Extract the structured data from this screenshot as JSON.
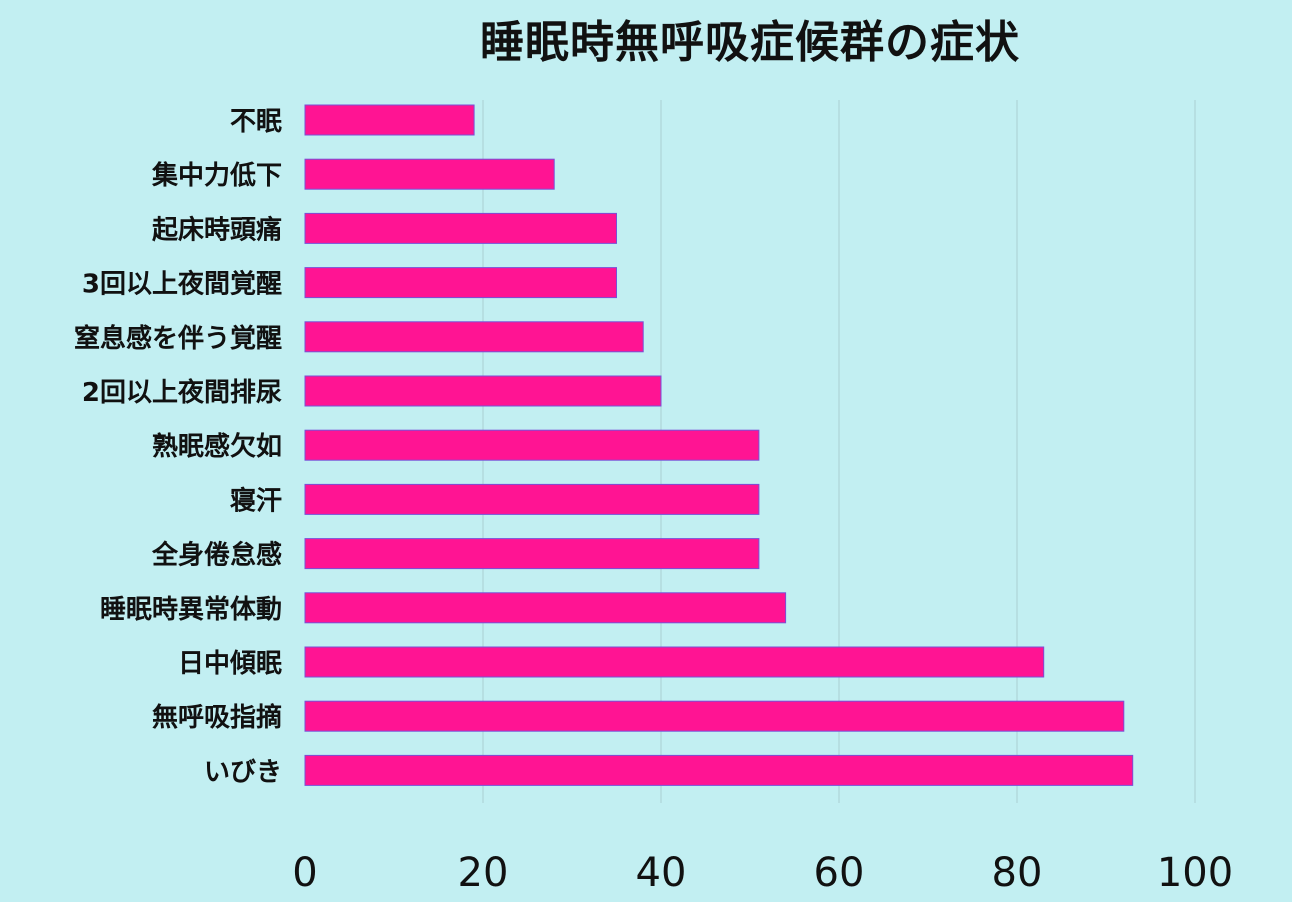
{
  "chart_data": {
    "type": "bar",
    "orientation": "horizontal",
    "title": "睡眠時無呼吸症候群の症状",
    "xlabel": "",
    "ylabel": "",
    "categories": [
      "不眠",
      "集中力低下",
      "起床時頭痛",
      "3回以上夜間覚醒",
      "窒息感を伴う覚醒",
      "2回以上夜間排尿",
      "熟眠感欠如",
      "寝汗",
      "全身倦怠感",
      "睡眠時異常体動",
      "日中傾眠",
      "無呼吸指摘",
      "いびき"
    ],
    "values": [
      19,
      28,
      35,
      35,
      38,
      40,
      51,
      51,
      51,
      54,
      83,
      92,
      93
    ],
    "xlim": [
      0,
      100
    ],
    "xticks": [
      0,
      20,
      40,
      60,
      80,
      100
    ],
    "grid": "vertical",
    "legend": "none",
    "colors": {
      "background": "#c2eff2",
      "bar": "#ff1493",
      "bar_edge": "#7a4fd6",
      "grid": "#a9cfd2"
    }
  }
}
